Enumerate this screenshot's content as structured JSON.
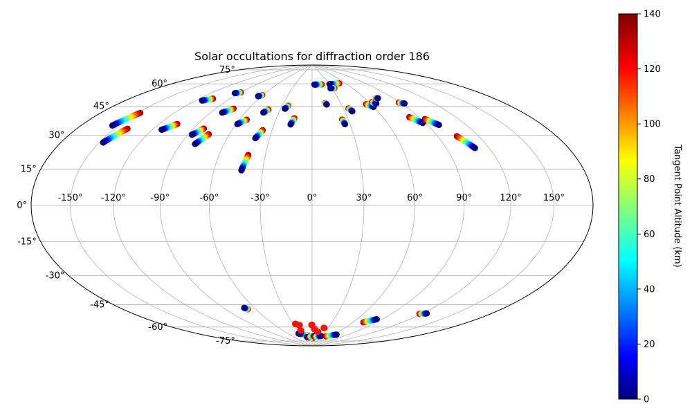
{
  "chart_data": {
    "type": "scatter",
    "projection": "hammer",
    "title": "Solar occultations for diffraction order 186",
    "grid": true,
    "lon_ticks": [
      -150,
      -120,
      -90,
      -60,
      -30,
      0,
      30,
      60,
      90,
      120,
      150
    ],
    "lon_tick_labels": [
      "-150°",
      "-120°",
      "-90°",
      "-60°",
      "-30°",
      "0°",
      "30°",
      "60°",
      "90°",
      "120°",
      "150°"
    ],
    "lat_ticks": [
      -75,
      -60,
      -45,
      -30,
      -15,
      0,
      15,
      30,
      45,
      60,
      75
    ],
    "lat_tick_labels": [
      "-75°",
      "-60°",
      "-45°",
      "-30°",
      "-15°",
      "0°",
      "15°",
      "30°",
      "45°",
      "60°",
      "75°"
    ],
    "colorbar": {
      "label": "Tangent Point Altitude (km)",
      "colormap": "jet",
      "min": 0,
      "max": 140,
      "ticks": [
        0,
        20,
        40,
        60,
        80,
        100,
        120,
        140
      ],
      "tick_labels": [
        "0",
        "20",
        "40",
        "60",
        "80",
        "100",
        "120",
        "140"
      ]
    },
    "tracks": [
      {
        "lon0": -155,
        "lat0": 38,
        "lon1": -148,
        "lat1": 46,
        "alt0": 0,
        "alt1": 140
      },
      {
        "lon0": -147,
        "lat0": 30,
        "lon1": -140,
        "lat1": 38,
        "alt0": 0,
        "alt1": 140
      },
      {
        "lon0": -114,
        "lat0": 58,
        "lon1": -107,
        "lat1": 60,
        "alt0": 0,
        "alt1": 140
      },
      {
        "lon0": -113,
        "lat0": 40,
        "lon1": -106,
        "lat1": 44,
        "alt0": 0,
        "alt1": 140
      },
      {
        "lon0": -95,
        "lat0": 65,
        "lon1": -90,
        "lat1": 66,
        "alt0": 0,
        "alt1": 140
      },
      {
        "lon0": -87,
        "lat0": 39,
        "lon1": -82,
        "lat1": 43,
        "alt0": 0,
        "alt1": 140
      },
      {
        "lon0": -80,
        "lat0": 34,
        "lon1": -75,
        "lat1": 40,
        "alt0": 0,
        "alt1": 140
      },
      {
        "lon0": -80,
        "lat0": 53,
        "lon1": -74,
        "lat1": 56,
        "alt0": 0,
        "alt1": 140
      },
      {
        "lon0": -64,
        "lat0": 65,
        "lon1": -61,
        "lat1": 66,
        "alt0": 0,
        "alt1": 140
      },
      {
        "lon0": -59,
        "lat0": 47,
        "lon1": -54,
        "lat1": 50,
        "alt0": 0,
        "alt1": 140
      },
      {
        "lon0": -44,
        "lat0": 55,
        "lon1": -41,
        "lat1": 57,
        "alt0": 0,
        "alt1": 140
      },
      {
        "lon0": -40,
        "lat0": 39,
        "lon1": -37,
        "lat1": 44,
        "alt0": 0,
        "alt1": 140
      },
      {
        "lon0": -43,
        "lat0": 20,
        "lon1": -41,
        "lat1": 29,
        "alt0": 0,
        "alt1": 140
      },
      {
        "lon0": -26,
        "lat0": 58,
        "lon1": -24,
        "lat1": 60,
        "alt0": 0,
        "alt1": 140
      },
      {
        "lon0": -17,
        "lat0": 48,
        "lon1": -15,
        "lat1": 52,
        "alt0": 0,
        "alt1": 140
      },
      {
        "lon0": 4,
        "lat0": 75,
        "lon1": 17,
        "lat1": 75,
        "alt0": 0,
        "alt1": 140
      },
      {
        "lon0": 31,
        "lat0": 75,
        "lon1": 49,
        "lat1": 75,
        "alt0": 0,
        "alt1": 140
      },
      {
        "lon0": 28,
        "lat0": 72,
        "lon1": 34,
        "lat1": 72,
        "alt0": 0,
        "alt1": 140
      },
      {
        "lon0": 15,
        "lat0": 61,
        "lon1": 14,
        "lat1": 62,
        "alt0": 0,
        "alt1": 140
      },
      {
        "lon0": 26,
        "lat0": 48,
        "lon1": 25,
        "lat1": 51,
        "alt0": 0,
        "alt1": 140
      },
      {
        "lon0": 37,
        "lat0": 56,
        "lon1": 35,
        "lat1": 58,
        "alt0": 0,
        "alt1": 140
      },
      {
        "lon0": 60,
        "lat0": 58,
        "lon1": 55,
        "lat1": 60,
        "alt0": 0,
        "alt1": 140
      },
      {
        "lon0": 66,
        "lat0": 60,
        "lon1": 63,
        "lat1": 61,
        "alt0": 0,
        "alt1": 140
      },
      {
        "lon0": 74,
        "lat0": 63,
        "lon1": 72,
        "lat1": 63,
        "alt0": 0,
        "alt1": 140
      },
      {
        "lon0": 93,
        "lat0": 58,
        "lon1": 89,
        "lat1": 59,
        "alt0": 0,
        "alt1": 140
      },
      {
        "lon0": 88,
        "lat0": 46,
        "lon1": 82,
        "lat1": 50,
        "alt0": 0,
        "alt1": 140
      },
      {
        "lon0": 99,
        "lat0": 44,
        "lon1": 93,
        "lat1": 48,
        "alt0": 0,
        "alt1": 140
      },
      {
        "lon0": 110,
        "lat0": 30,
        "lon1": 104,
        "lat1": 37,
        "alt0": 0,
        "alt1": 140
      },
      {
        "lon0": -70,
        "lat0": -60,
        "lon1": -68,
        "lat1": -61,
        "alt0": 0,
        "alt1": 140
      },
      {
        "lon0": -35,
        "lat0": -80,
        "lon1": -12,
        "lat1": -82,
        "alt0": 0,
        "alt1": 140
      },
      {
        "lon0": -18,
        "lat0": -83,
        "lon1": 2,
        "lat1": -84,
        "alt0": 0,
        "alt1": 140
      },
      {
        "lon0": 10,
        "lat0": -82,
        "lon1": -10,
        "lat1": -83,
        "alt0": 0,
        "alt1": 140
      },
      {
        "lon0": 28,
        "lat0": -82,
        "lon1": 10,
        "lat1": -83,
        "alt0": 0,
        "alt1": 140
      },
      {
        "lon0": 65,
        "lat0": -80,
        "lon1": 44,
        "lat1": -82,
        "alt0": 0,
        "alt1": 140
      },
      {
        "lon0": 84,
        "lat0": -67,
        "lon1": 74,
        "lat1": -70,
        "alt0": 0,
        "alt1": 140
      },
      {
        "lon0": 124,
        "lat0": -59,
        "lon1": 118,
        "lat1": -60,
        "alt0": 0,
        "alt1": 140
      },
      {
        "lon0": -27,
        "lat0": -73,
        "lon1": -26,
        "lat1": -73,
        "alt0": 120,
        "alt1": 140
      },
      {
        "lon0": -22,
        "lat0": -74,
        "lon1": -21,
        "lat1": -74,
        "alt0": 120,
        "alt1": 140
      },
      {
        "lon0": -25,
        "lat0": -78,
        "lon1": -24,
        "lat1": -78,
        "alt0": 120,
        "alt1": 140
      },
      {
        "lon0": -1,
        "lat0": -74,
        "lon1": 0,
        "lat1": -74,
        "alt0": 120,
        "alt1": 140
      },
      {
        "lon0": 4,
        "lat0": -77,
        "lon1": 5,
        "lat1": -77,
        "alt0": 120,
        "alt1": 140
      },
      {
        "lon0": 13,
        "lat0": -79,
        "lon1": 14,
        "lat1": -79,
        "alt0": 120,
        "alt1": 140
      },
      {
        "lon0": 22,
        "lat0": -76,
        "lon1": 23,
        "lat1": -76,
        "alt0": 120,
        "alt1": 140
      }
    ]
  }
}
